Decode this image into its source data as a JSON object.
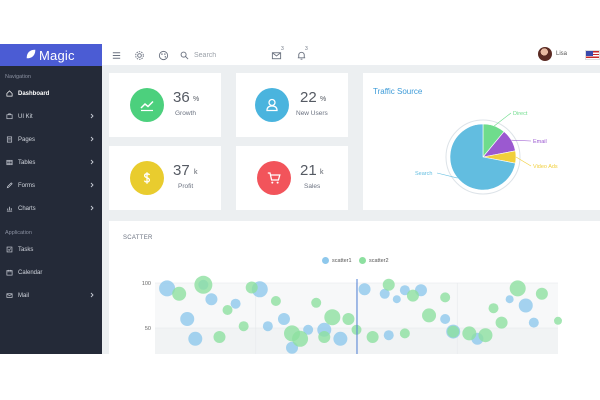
{
  "app": {
    "brand": "Magic"
  },
  "topbar": {
    "search_placeholder": "Search",
    "mail_count": "3",
    "bell_count": "3",
    "user_name": "Lisa"
  },
  "sidebar": {
    "nav_header": "Navigation",
    "app_header": "Application",
    "nav_items": [
      {
        "label": "Dashboard",
        "icon": "home-icon",
        "has_children": false,
        "active": true
      },
      {
        "label": "UI Kit",
        "icon": "kit-icon",
        "has_children": true
      },
      {
        "label": "Pages",
        "icon": "pages-icon",
        "has_children": true
      },
      {
        "label": "Tables",
        "icon": "table-icon",
        "has_children": true
      },
      {
        "label": "Forms",
        "icon": "pencil-icon",
        "has_children": true
      },
      {
        "label": "Charts",
        "icon": "chart-icon",
        "has_children": true
      }
    ],
    "app_items": [
      {
        "label": "Tasks",
        "icon": "tasks-icon",
        "has_children": false
      },
      {
        "label": "Calendar",
        "icon": "calendar-icon",
        "has_children": false
      },
      {
        "label": "Mail",
        "icon": "mail-icon",
        "has_children": true
      }
    ]
  },
  "stats": [
    {
      "value": "36",
      "unit": "%",
      "label": "Growth",
      "color": "#4cd07d",
      "icon": "trend-icon"
    },
    {
      "value": "22",
      "unit": "%",
      "label": "New Users",
      "color": "#4ab4de",
      "icon": "user-icon"
    },
    {
      "value": "37",
      "unit": "k",
      "label": "Profit",
      "color": "#e9cc2e",
      "icon": "dollar-icon"
    },
    {
      "value": "21",
      "unit": "k",
      "label": "Sales",
      "color": "#f2545b",
      "icon": "cart-icon"
    }
  ],
  "traffic": {
    "title": "Traffic Source",
    "slices": [
      {
        "label": "Search",
        "color": "#62bde0"
      },
      {
        "label": "Direct",
        "color": "#6fdc8c"
      },
      {
        "label": "Email",
        "color": "#9b59d0"
      },
      {
        "label": "Video Ads",
        "color": "#f1cf3b"
      }
    ]
  },
  "scatter": {
    "title": "SCATTER",
    "series": [
      {
        "name": "scatter1",
        "color": "#8ec8ec"
      },
      {
        "name": "scatter2",
        "color": "#8de0a0"
      }
    ],
    "y_ticks": [
      "100",
      "50"
    ]
  },
  "chart_data": [
    {
      "type": "pie",
      "title": "Traffic Source",
      "categories": [
        "Search",
        "Direct",
        "Email",
        "Video Ads"
      ],
      "values": [
        72,
        11,
        11,
        6
      ]
    },
    {
      "type": "scatter",
      "title": "SCATTER",
      "ylim": [
        0,
        100
      ],
      "yticks": [
        100,
        50
      ],
      "series": [
        {
          "name": "scatter1",
          "points": [
            [
              3,
              94,
              8
            ],
            [
              8,
              60,
              7
            ],
            [
              14,
              82,
              6
            ],
            [
              20,
              77,
              5
            ],
            [
              26,
              93,
              8
            ],
            [
              32,
              60,
              6
            ],
            [
              38,
              48,
              5
            ],
            [
              42,
              48,
              7
            ],
            [
              52,
              93,
              6
            ],
            [
              57,
              88,
              5
            ],
            [
              62,
              92,
              5
            ],
            [
              66,
              92,
              6
            ],
            [
              72,
              60,
              5
            ],
            [
              80,
              38,
              6
            ],
            [
              92,
              75,
              7
            ],
            [
              94,
              56,
              5
            ],
            [
              10,
              38,
              7
            ],
            [
              28,
              52,
              5
            ],
            [
              46,
              38,
              7
            ],
            [
              58,
              42,
              5
            ],
            [
              74,
              46,
              7
            ],
            [
              88,
              82,
              4
            ],
            [
              12,
              98,
              5
            ],
            [
              34,
              28,
              6
            ],
            [
              60,
              82,
              4
            ]
          ]
        },
        {
          "name": "scatter2",
          "points": [
            [
              6,
              88,
              7
            ],
            [
              12,
              98,
              9
            ],
            [
              18,
              70,
              5
            ],
            [
              24,
              95,
              6
            ],
            [
              34,
              44,
              8
            ],
            [
              40,
              78,
              5
            ],
            [
              44,
              62,
              8
            ],
            [
              50,
              48,
              5
            ],
            [
              58,
              98,
              6
            ],
            [
              64,
              86,
              6
            ],
            [
              72,
              84,
              5
            ],
            [
              74,
              46,
              6
            ],
            [
              84,
              72,
              5
            ],
            [
              86,
              56,
              6
            ],
            [
              90,
              94,
              8
            ],
            [
              96,
              88,
              6
            ],
            [
              16,
              40,
              6
            ],
            [
              36,
              38,
              8
            ],
            [
              48,
              60,
              6
            ],
            [
              68,
              64,
              7
            ],
            [
              82,
              42,
              7
            ],
            [
              100,
              58,
              4
            ],
            [
              22,
              52,
              5
            ],
            [
              54,
              40,
              6
            ],
            [
              78,
              44,
              7
            ],
            [
              30,
              80,
              5
            ],
            [
              42,
              40,
              6
            ],
            [
              62,
              44,
              5
            ]
          ]
        }
      ]
    }
  ]
}
